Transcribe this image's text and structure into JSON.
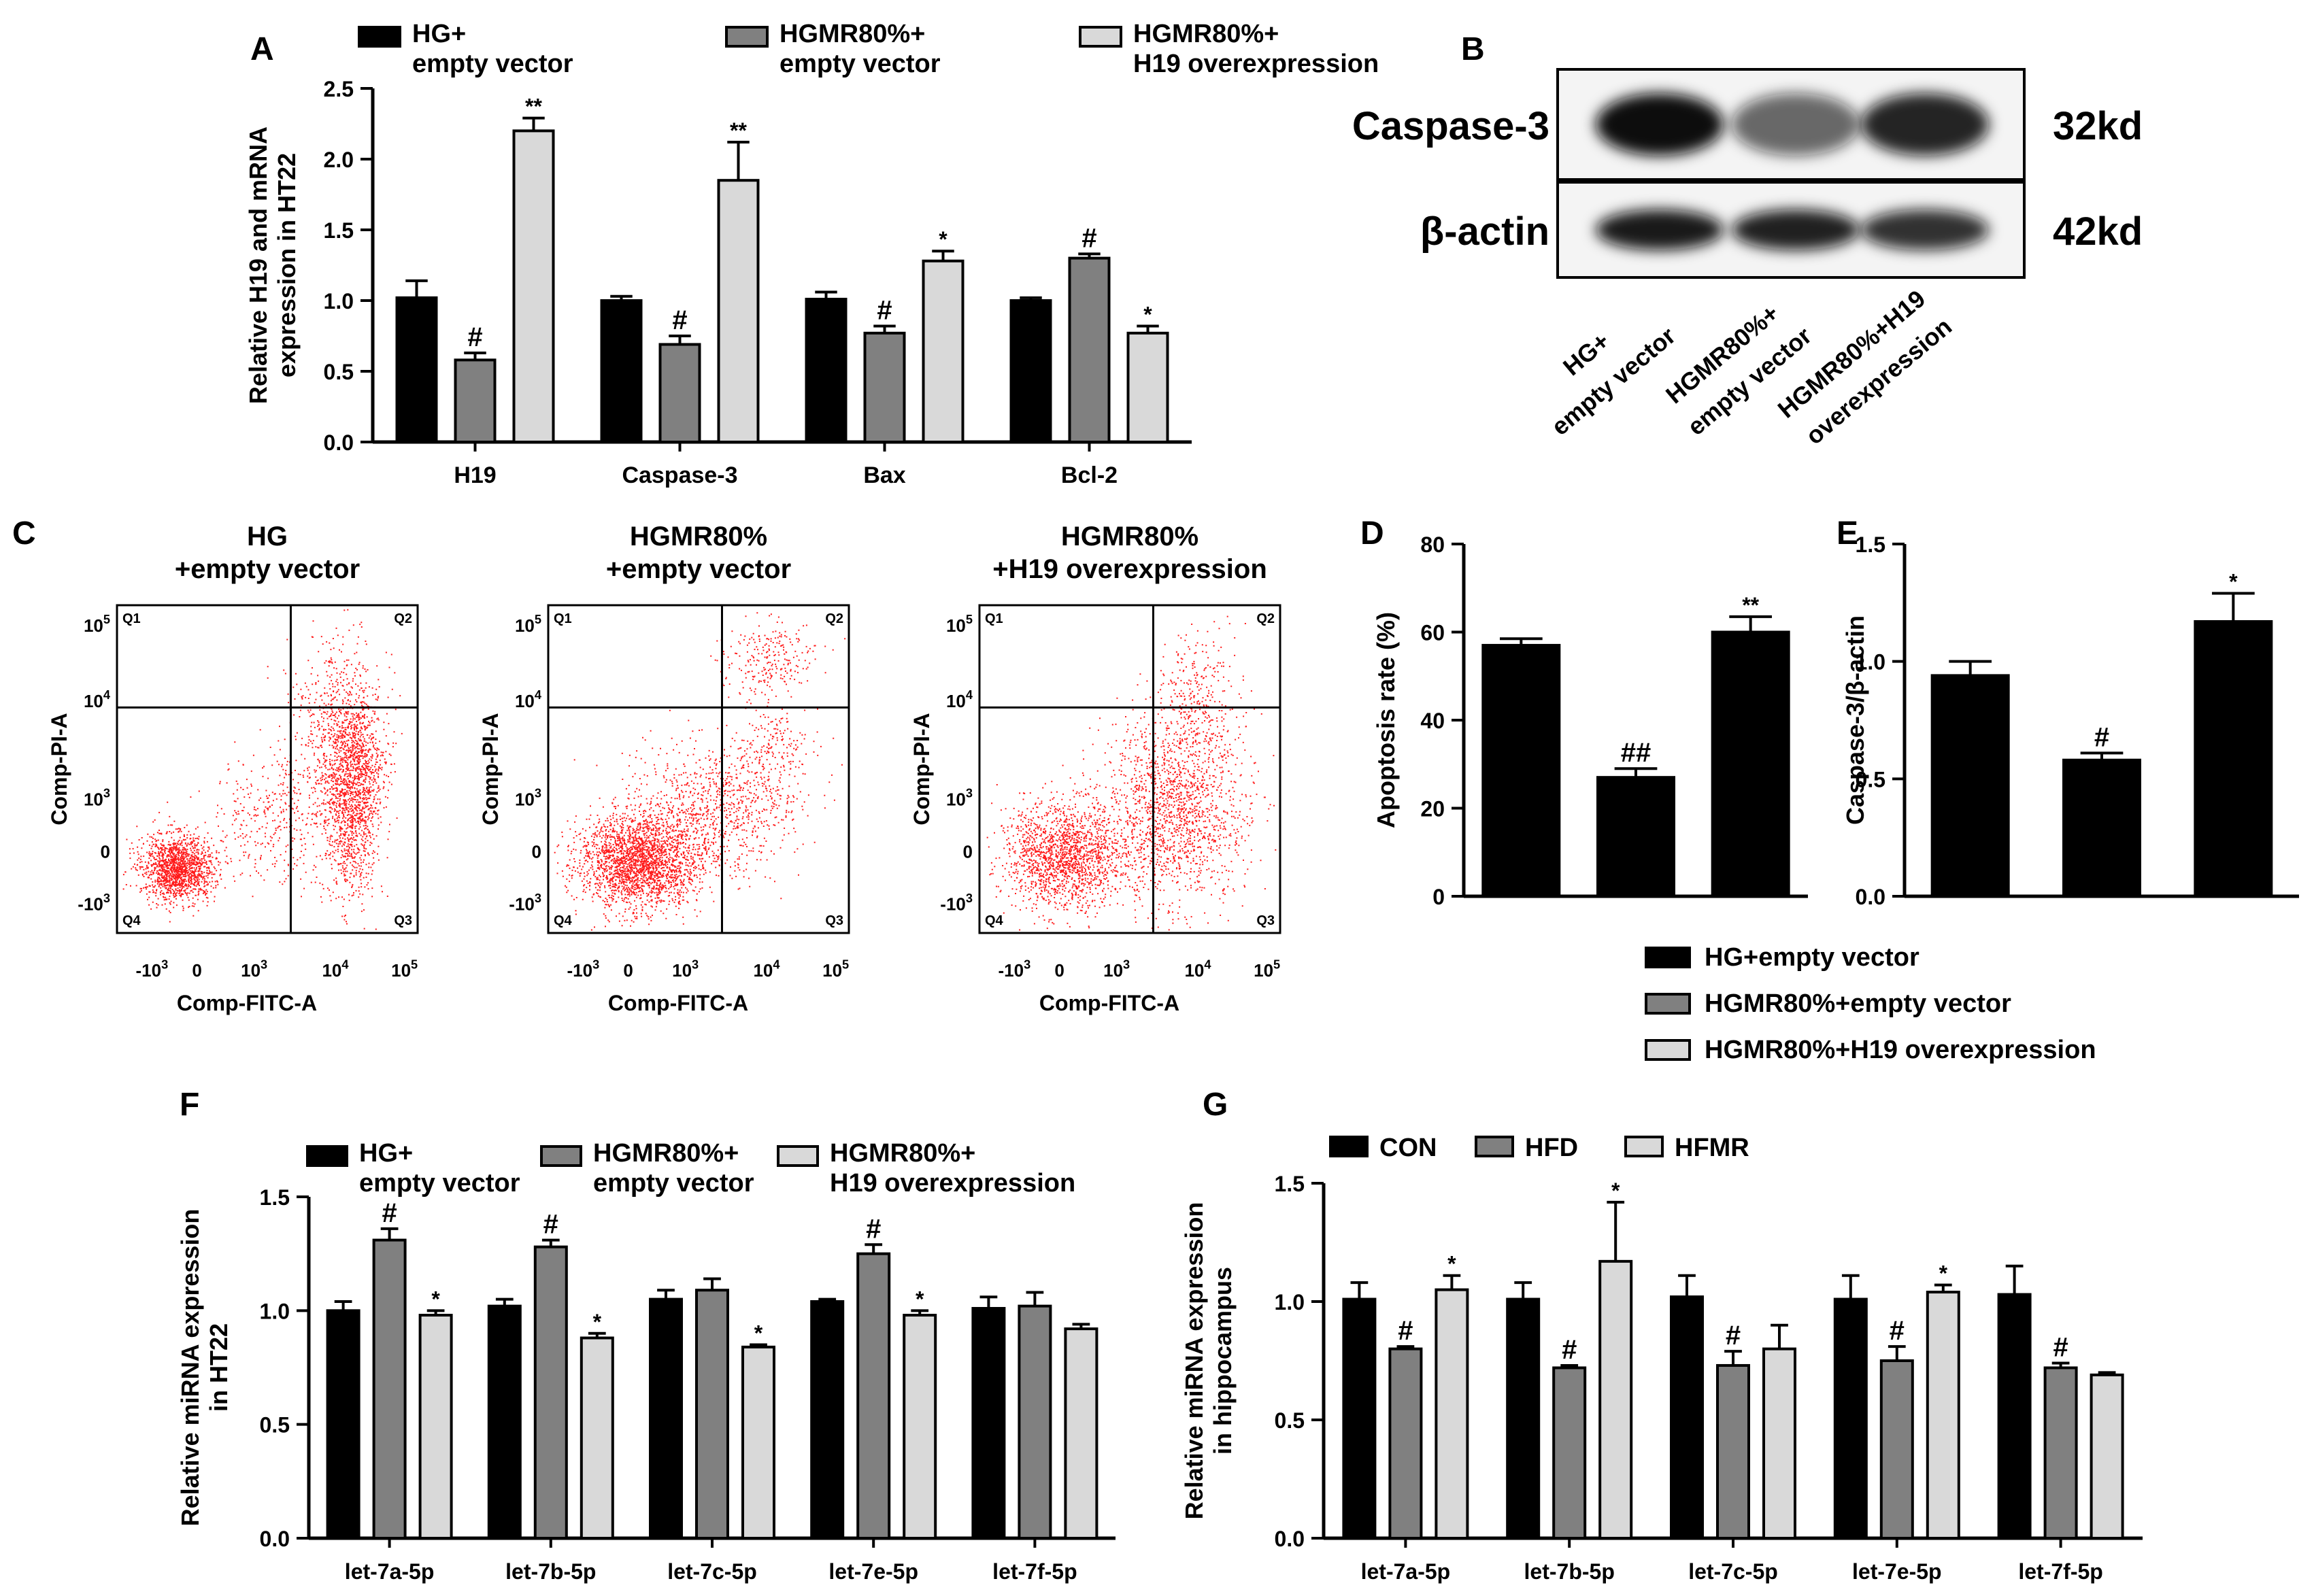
{
  "panel_letters": {
    "A": "A",
    "B": "B",
    "C": "C",
    "D": "D",
    "E": "E",
    "F": "F",
    "G": "G"
  },
  "colors": {
    "hg": "#000000",
    "hgmr": "#808080",
    "h19": "#d9d9d9",
    "dot": "#ff1a1a"
  },
  "chart_data": [
    {
      "id": "A",
      "type": "bar",
      "ylabel_lines": [
        "Relative H19 and mRNA",
        "expression in HT22"
      ],
      "ylim": [
        0,
        2.5
      ],
      "yticks": [
        "0.0",
        "0.5",
        "1.0",
        "1.5",
        "2.0",
        "2.5"
      ],
      "categories": [
        "H19",
        "Caspase-3",
        "Bax",
        "Bcl-2"
      ],
      "legend": [
        [
          "HG+",
          "empty vector"
        ],
        [
          "HGMR80%+",
          "empty vector"
        ],
        [
          "HGMR80%+",
          "H19 overexpression"
        ]
      ],
      "series": [
        {
          "name": "HG+ empty vector",
          "values": [
            1.02,
            1.0,
            1.01,
            1.0
          ],
          "errors": [
            0.12,
            0.03,
            0.05,
            0.02
          ],
          "marks": [
            "",
            "",
            "",
            ""
          ]
        },
        {
          "name": "HGMR80%+ empty vector",
          "values": [
            0.58,
            0.69,
            0.77,
            1.3
          ],
          "errors": [
            0.05,
            0.06,
            0.05,
            0.03
          ],
          "marks": [
            "#",
            "#",
            "#",
            "#"
          ]
        },
        {
          "name": "HGMR80%+ H19 overexpression",
          "values": [
            2.2,
            1.85,
            1.28,
            0.77
          ],
          "errors": [
            0.09,
            0.27,
            0.07,
            0.05
          ],
          "marks": [
            "**",
            "**",
            "*",
            "*"
          ]
        }
      ]
    },
    {
      "id": "D",
      "type": "bar",
      "ylabel_lines": [
        "Apoptosis rate (%)"
      ],
      "ylim": [
        0,
        80
      ],
      "yticks": [
        "0",
        "20",
        "40",
        "60",
        "80"
      ],
      "categories": [
        "HG+empty vector",
        "HGMR80%+empty vector",
        "HGMR80%+H19 overexpression"
      ],
      "series": [
        {
          "name": "Apoptosis",
          "values": [
            57,
            27,
            60
          ],
          "errors": [
            1.5,
            2,
            3.5
          ],
          "marks": [
            "",
            "##",
            "**"
          ]
        }
      ]
    },
    {
      "id": "E",
      "type": "bar",
      "ylabel_lines": [
        "Caspase-3/β-actin"
      ],
      "ylim": [
        0,
        1.5
      ],
      "yticks": [
        "0.0",
        "0.5",
        "1.0",
        "1.5"
      ],
      "categories": [
        "HG+empty vector",
        "HGMR80%+empty vector",
        "HGMR80%+H19 overexpression"
      ],
      "series": [
        {
          "name": "Caspase-3",
          "values": [
            0.94,
            0.58,
            1.17
          ],
          "errors": [
            0.06,
            0.03,
            0.12
          ],
          "marks": [
            "",
            "#",
            "*"
          ]
        }
      ]
    },
    {
      "id": "F",
      "type": "bar",
      "ylabel_lines": [
        "Relative miRNA expression",
        "in HT22"
      ],
      "ylim": [
        0,
        1.5
      ],
      "yticks": [
        "0.0",
        "0.5",
        "1.0",
        "1.5"
      ],
      "categories": [
        "let-7a-5p",
        "let-7b-5p",
        "let-7c-5p",
        "let-7e-5p",
        "let-7f-5p"
      ],
      "legend": [
        [
          "HG+",
          "empty vector"
        ],
        [
          "HGMR80%+",
          "empty vector"
        ],
        [
          "HGMR80%+",
          "H19 overexpression"
        ]
      ],
      "series": [
        {
          "name": "HG+ empty vector",
          "values": [
            1.0,
            1.02,
            1.05,
            1.04,
            1.01
          ],
          "errors": [
            0.04,
            0.03,
            0.04,
            0.01,
            0.05
          ],
          "marks": [
            "",
            "",
            "",
            "",
            ""
          ]
        },
        {
          "name": "HGMR80%+ empty vector",
          "values": [
            1.31,
            1.28,
            1.09,
            1.25,
            1.02
          ],
          "errors": [
            0.05,
            0.03,
            0.05,
            0.04,
            0.06
          ],
          "marks": [
            "#",
            "#",
            "",
            "#",
            ""
          ]
        },
        {
          "name": "HGMR80%+ H19 overexpression",
          "values": [
            0.98,
            0.88,
            0.84,
            0.98,
            0.92
          ],
          "errors": [
            0.02,
            0.02,
            0.01,
            0.02,
            0.02
          ],
          "marks": [
            "*",
            "*",
            "*",
            "*",
            ""
          ]
        }
      ]
    },
    {
      "id": "G",
      "type": "bar",
      "ylabel_lines": [
        "Relative miRNA expression",
        "in hippocampus"
      ],
      "ylim": [
        0,
        1.5
      ],
      "yticks": [
        "0.0",
        "0.5",
        "1.0",
        "1.5"
      ],
      "categories": [
        "let-7a-5p",
        "let-7b-5p",
        "let-7c-5p",
        "let-7e-5p",
        "let-7f-5p"
      ],
      "legend": [
        [
          "CON"
        ],
        [
          "HFD"
        ],
        [
          "HFMR"
        ]
      ],
      "series": [
        {
          "name": "CON",
          "values": [
            1.01,
            1.01,
            1.02,
            1.01,
            1.03
          ],
          "errors": [
            0.07,
            0.07,
            0.09,
            0.1,
            0.12
          ],
          "marks": [
            "",
            "",
            "",
            "",
            ""
          ]
        },
        {
          "name": "HFD",
          "values": [
            0.8,
            0.72,
            0.73,
            0.75,
            0.72
          ],
          "errors": [
            0.01,
            0.01,
            0.06,
            0.06,
            0.02
          ],
          "marks": [
            "#",
            "#",
            "#",
            "#",
            "#"
          ]
        },
        {
          "name": "HFMR",
          "values": [
            1.05,
            1.17,
            0.8,
            1.04,
            0.69
          ],
          "errors": [
            0.06,
            0.25,
            0.1,
            0.03,
            0.01
          ],
          "marks": [
            "*",
            "*",
            "",
            "*",
            ""
          ]
        }
      ]
    }
  ],
  "legend_DE": [
    "HG+empty vector",
    "HGMR80%+empty vector",
    "HGMR80%+H19 overexpression"
  ],
  "western": {
    "labels": [
      "Caspase-3",
      "β-actin"
    ],
    "sizes": [
      "32kd",
      "42kd"
    ],
    "lanes": [
      [
        "HG+",
        "empty vector"
      ],
      [
        "HGMR80%+",
        "empty vector"
      ],
      [
        "HGMR80%+H19",
        "overexpression"
      ]
    ]
  },
  "flow": {
    "titles": [
      [
        "HG",
        "+empty vector"
      ],
      [
        "HGMR80%",
        "+empty vector"
      ],
      [
        "HGMR80%",
        "+H19 overexpression"
      ]
    ],
    "xlabel": "Comp-FITC-A",
    "ylabel": "Comp-PI-A",
    "quadrants": [
      "Q1",
      "Q2",
      "Q3",
      "Q4"
    ],
    "yticks": [
      "10^5",
      "10^4",
      "10^3",
      "0",
      "-10^3"
    ],
    "xticks": [
      "-10^3",
      "0",
      "10^3",
      "10^4",
      "10^5"
    ]
  }
}
